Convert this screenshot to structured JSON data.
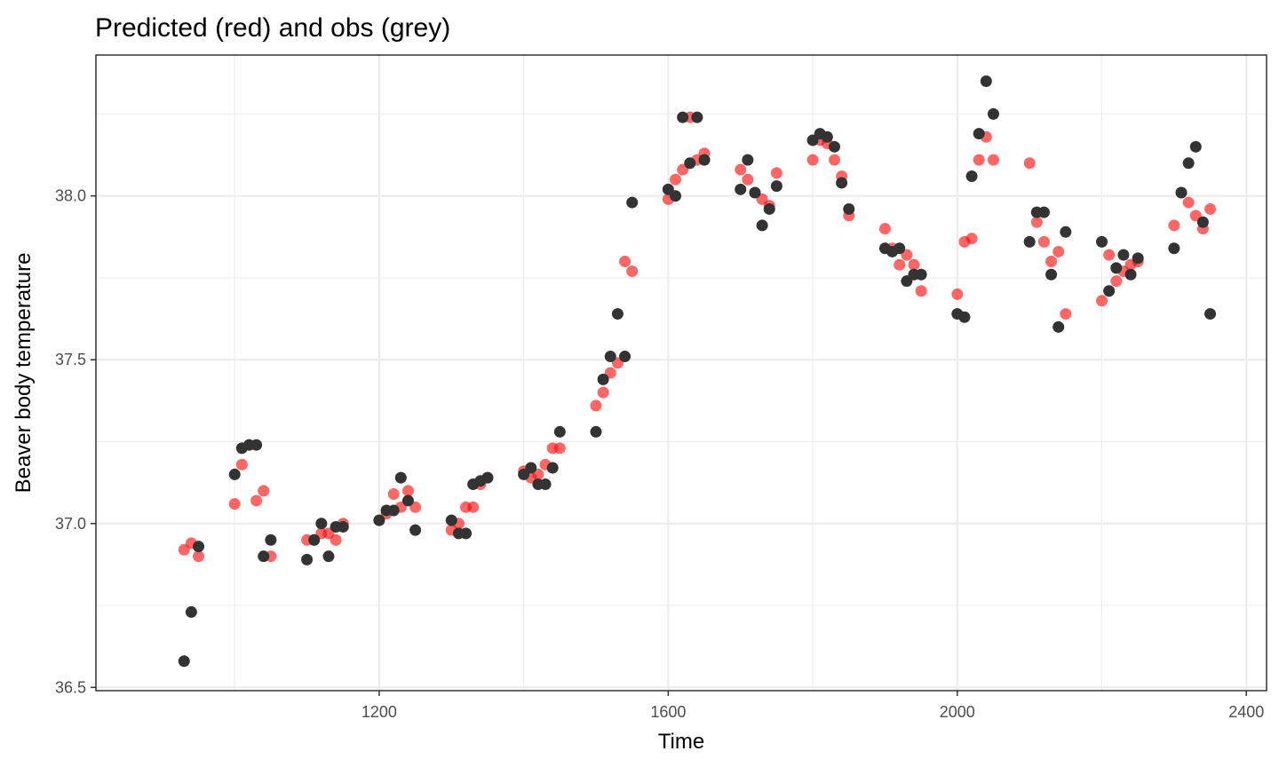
{
  "chart_data": {
    "type": "scatter",
    "title": "Predicted (red) and obs (grey)",
    "xlabel": "Time",
    "ylabel": "Beaver body temperature",
    "xlim": [
      808,
      2428
    ],
    "ylim": [
      36.49,
      38.43
    ],
    "x_ticks": [
      1200,
      1600,
      2000,
      2400
    ],
    "x_tick_labels": [
      "1200",
      "1600",
      "2000",
      "2400"
    ],
    "y_ticks": [
      36.5,
      37.0,
      37.5,
      38.0
    ],
    "y_tick_labels": [
      "36.5",
      "37.0",
      "37.5",
      "38.0"
    ],
    "grid": true,
    "colors": {
      "predicted": "#ff0000",
      "observed": "#333333",
      "grid": "#ebebeb",
      "panel_border": "#333333"
    },
    "series": [
      {
        "key": "predicted",
        "color": "#ff0000",
        "opacity": 0.6,
        "points": [
          [
            930,
            36.92
          ],
          [
            940,
            36.94
          ],
          [
            950,
            36.9
          ],
          [
            1000,
            37.06
          ],
          [
            1010,
            37.18
          ],
          [
            1020,
            37.24
          ],
          [
            1030,
            37.07
          ],
          [
            1040,
            37.1
          ],
          [
            1050,
            36.9
          ],
          [
            1100,
            36.95
          ],
          [
            1110,
            36.95
          ],
          [
            1120,
            36.97
          ],
          [
            1130,
            36.97
          ],
          [
            1140,
            36.95
          ],
          [
            1150,
            37.0
          ],
          [
            1200,
            37.01
          ],
          [
            1210,
            37.03
          ],
          [
            1220,
            37.09
          ],
          [
            1230,
            37.05
          ],
          [
            1240,
            37.1
          ],
          [
            1250,
            37.05
          ],
          [
            1300,
            36.98
          ],
          [
            1310,
            37.0
          ],
          [
            1320,
            37.05
          ],
          [
            1330,
            37.05
          ],
          [
            1340,
            37.12
          ],
          [
            1350,
            37.14
          ],
          [
            1400,
            37.16
          ],
          [
            1410,
            37.14
          ],
          [
            1420,
            37.15
          ],
          [
            1430,
            37.18
          ],
          [
            1440,
            37.23
          ],
          [
            1450,
            37.23
          ],
          [
            1500,
            37.36
          ],
          [
            1510,
            37.4
          ],
          [
            1520,
            37.46
          ],
          [
            1530,
            37.49
          ],
          [
            1540,
            37.8
          ],
          [
            1550,
            37.77
          ],
          [
            1600,
            37.99
          ],
          [
            1610,
            38.05
          ],
          [
            1620,
            38.08
          ],
          [
            1630,
            38.24
          ],
          [
            1640,
            38.11
          ],
          [
            1650,
            38.13
          ],
          [
            1700,
            38.08
          ],
          [
            1710,
            38.05
          ],
          [
            1720,
            38.01
          ],
          [
            1730,
            37.99
          ],
          [
            1740,
            37.97
          ],
          [
            1750,
            38.07
          ],
          [
            1800,
            38.11
          ],
          [
            1810,
            38.17
          ],
          [
            1820,
            38.16
          ],
          [
            1830,
            38.11
          ],
          [
            1840,
            38.06
          ],
          [
            1850,
            37.94
          ],
          [
            1900,
            37.9
          ],
          [
            1910,
            37.84
          ],
          [
            1920,
            37.79
          ],
          [
            1930,
            37.82
          ],
          [
            1940,
            37.79
          ],
          [
            1950,
            37.71
          ],
          [
            2000,
            37.7
          ],
          [
            2010,
            37.86
          ],
          [
            2020,
            37.87
          ],
          [
            2030,
            38.11
          ],
          [
            2040,
            38.18
          ],
          [
            2050,
            38.11
          ],
          [
            2100,
            38.1
          ],
          [
            2110,
            37.92
          ],
          [
            2120,
            37.86
          ],
          [
            2130,
            37.8
          ],
          [
            2140,
            37.83
          ],
          [
            2150,
            37.64
          ],
          [
            2200,
            37.68
          ],
          [
            2210,
            37.82
          ],
          [
            2220,
            37.74
          ],
          [
            2230,
            37.77
          ],
          [
            2240,
            37.79
          ],
          [
            2250,
            37.8
          ],
          [
            2300,
            37.91
          ],
          [
            2310,
            38.01
          ],
          [
            2320,
            37.98
          ],
          [
            2330,
            37.94
          ],
          [
            2340,
            37.9
          ],
          [
            2350,
            37.96
          ]
        ]
      },
      {
        "key": "observed",
        "color": "#333333",
        "opacity": 1,
        "points": [
          [
            930,
            36.58
          ],
          [
            940,
            36.73
          ],
          [
            950,
            36.93
          ],
          [
            1000,
            37.15
          ],
          [
            1010,
            37.23
          ],
          [
            1020,
            37.24
          ],
          [
            1030,
            37.24
          ],
          [
            1040,
            36.9
          ],
          [
            1050,
            36.95
          ],
          [
            1100,
            36.89
          ],
          [
            1110,
            36.95
          ],
          [
            1120,
            37.0
          ],
          [
            1130,
            36.9
          ],
          [
            1140,
            36.99
          ],
          [
            1150,
            36.99
          ],
          [
            1200,
            37.01
          ],
          [
            1210,
            37.04
          ],
          [
            1220,
            37.04
          ],
          [
            1230,
            37.14
          ],
          [
            1240,
            37.07
          ],
          [
            1250,
            36.98
          ],
          [
            1300,
            37.01
          ],
          [
            1310,
            36.97
          ],
          [
            1320,
            36.97
          ],
          [
            1330,
            37.12
          ],
          [
            1340,
            37.13
          ],
          [
            1350,
            37.14
          ],
          [
            1400,
            37.15
          ],
          [
            1410,
            37.17
          ],
          [
            1420,
            37.12
          ],
          [
            1430,
            37.12
          ],
          [
            1440,
            37.17
          ],
          [
            1450,
            37.28
          ],
          [
            1500,
            37.28
          ],
          [
            1510,
            37.44
          ],
          [
            1520,
            37.51
          ],
          [
            1530,
            37.64
          ],
          [
            1540,
            37.51
          ],
          [
            1550,
            37.98
          ],
          [
            1600,
            38.02
          ],
          [
            1610,
            38.0
          ],
          [
            1620,
            38.24
          ],
          [
            1630,
            38.1
          ],
          [
            1640,
            38.24
          ],
          [
            1650,
            38.11
          ],
          [
            1700,
            38.02
          ],
          [
            1710,
            38.11
          ],
          [
            1720,
            38.01
          ],
          [
            1730,
            37.91
          ],
          [
            1740,
            37.96
          ],
          [
            1750,
            38.03
          ],
          [
            1800,
            38.17
          ],
          [
            1810,
            38.19
          ],
          [
            1820,
            38.18
          ],
          [
            1830,
            38.15
          ],
          [
            1840,
            38.04
          ],
          [
            1850,
            37.96
          ],
          [
            1900,
            37.84
          ],
          [
            1910,
            37.83
          ],
          [
            1920,
            37.84
          ],
          [
            1930,
            37.74
          ],
          [
            1940,
            37.76
          ],
          [
            1950,
            37.76
          ],
          [
            2000,
            37.64
          ],
          [
            2010,
            37.63
          ],
          [
            2020,
            38.06
          ],
          [
            2030,
            38.19
          ],
          [
            2040,
            38.35
          ],
          [
            2050,
            38.25
          ],
          [
            2100,
            37.86
          ],
          [
            2110,
            37.95
          ],
          [
            2120,
            37.95
          ],
          [
            2130,
            37.76
          ],
          [
            2140,
            37.6
          ],
          [
            2150,
            37.89
          ],
          [
            2200,
            37.86
          ],
          [
            2210,
            37.71
          ],
          [
            2220,
            37.78
          ],
          [
            2230,
            37.82
          ],
          [
            2240,
            37.76
          ],
          [
            2250,
            37.81
          ],
          [
            2300,
            37.84
          ],
          [
            2310,
            38.01
          ],
          [
            2320,
            38.1
          ],
          [
            2330,
            38.15
          ],
          [
            2340,
            37.92
          ],
          [
            2350,
            37.64
          ]
        ]
      }
    ]
  }
}
